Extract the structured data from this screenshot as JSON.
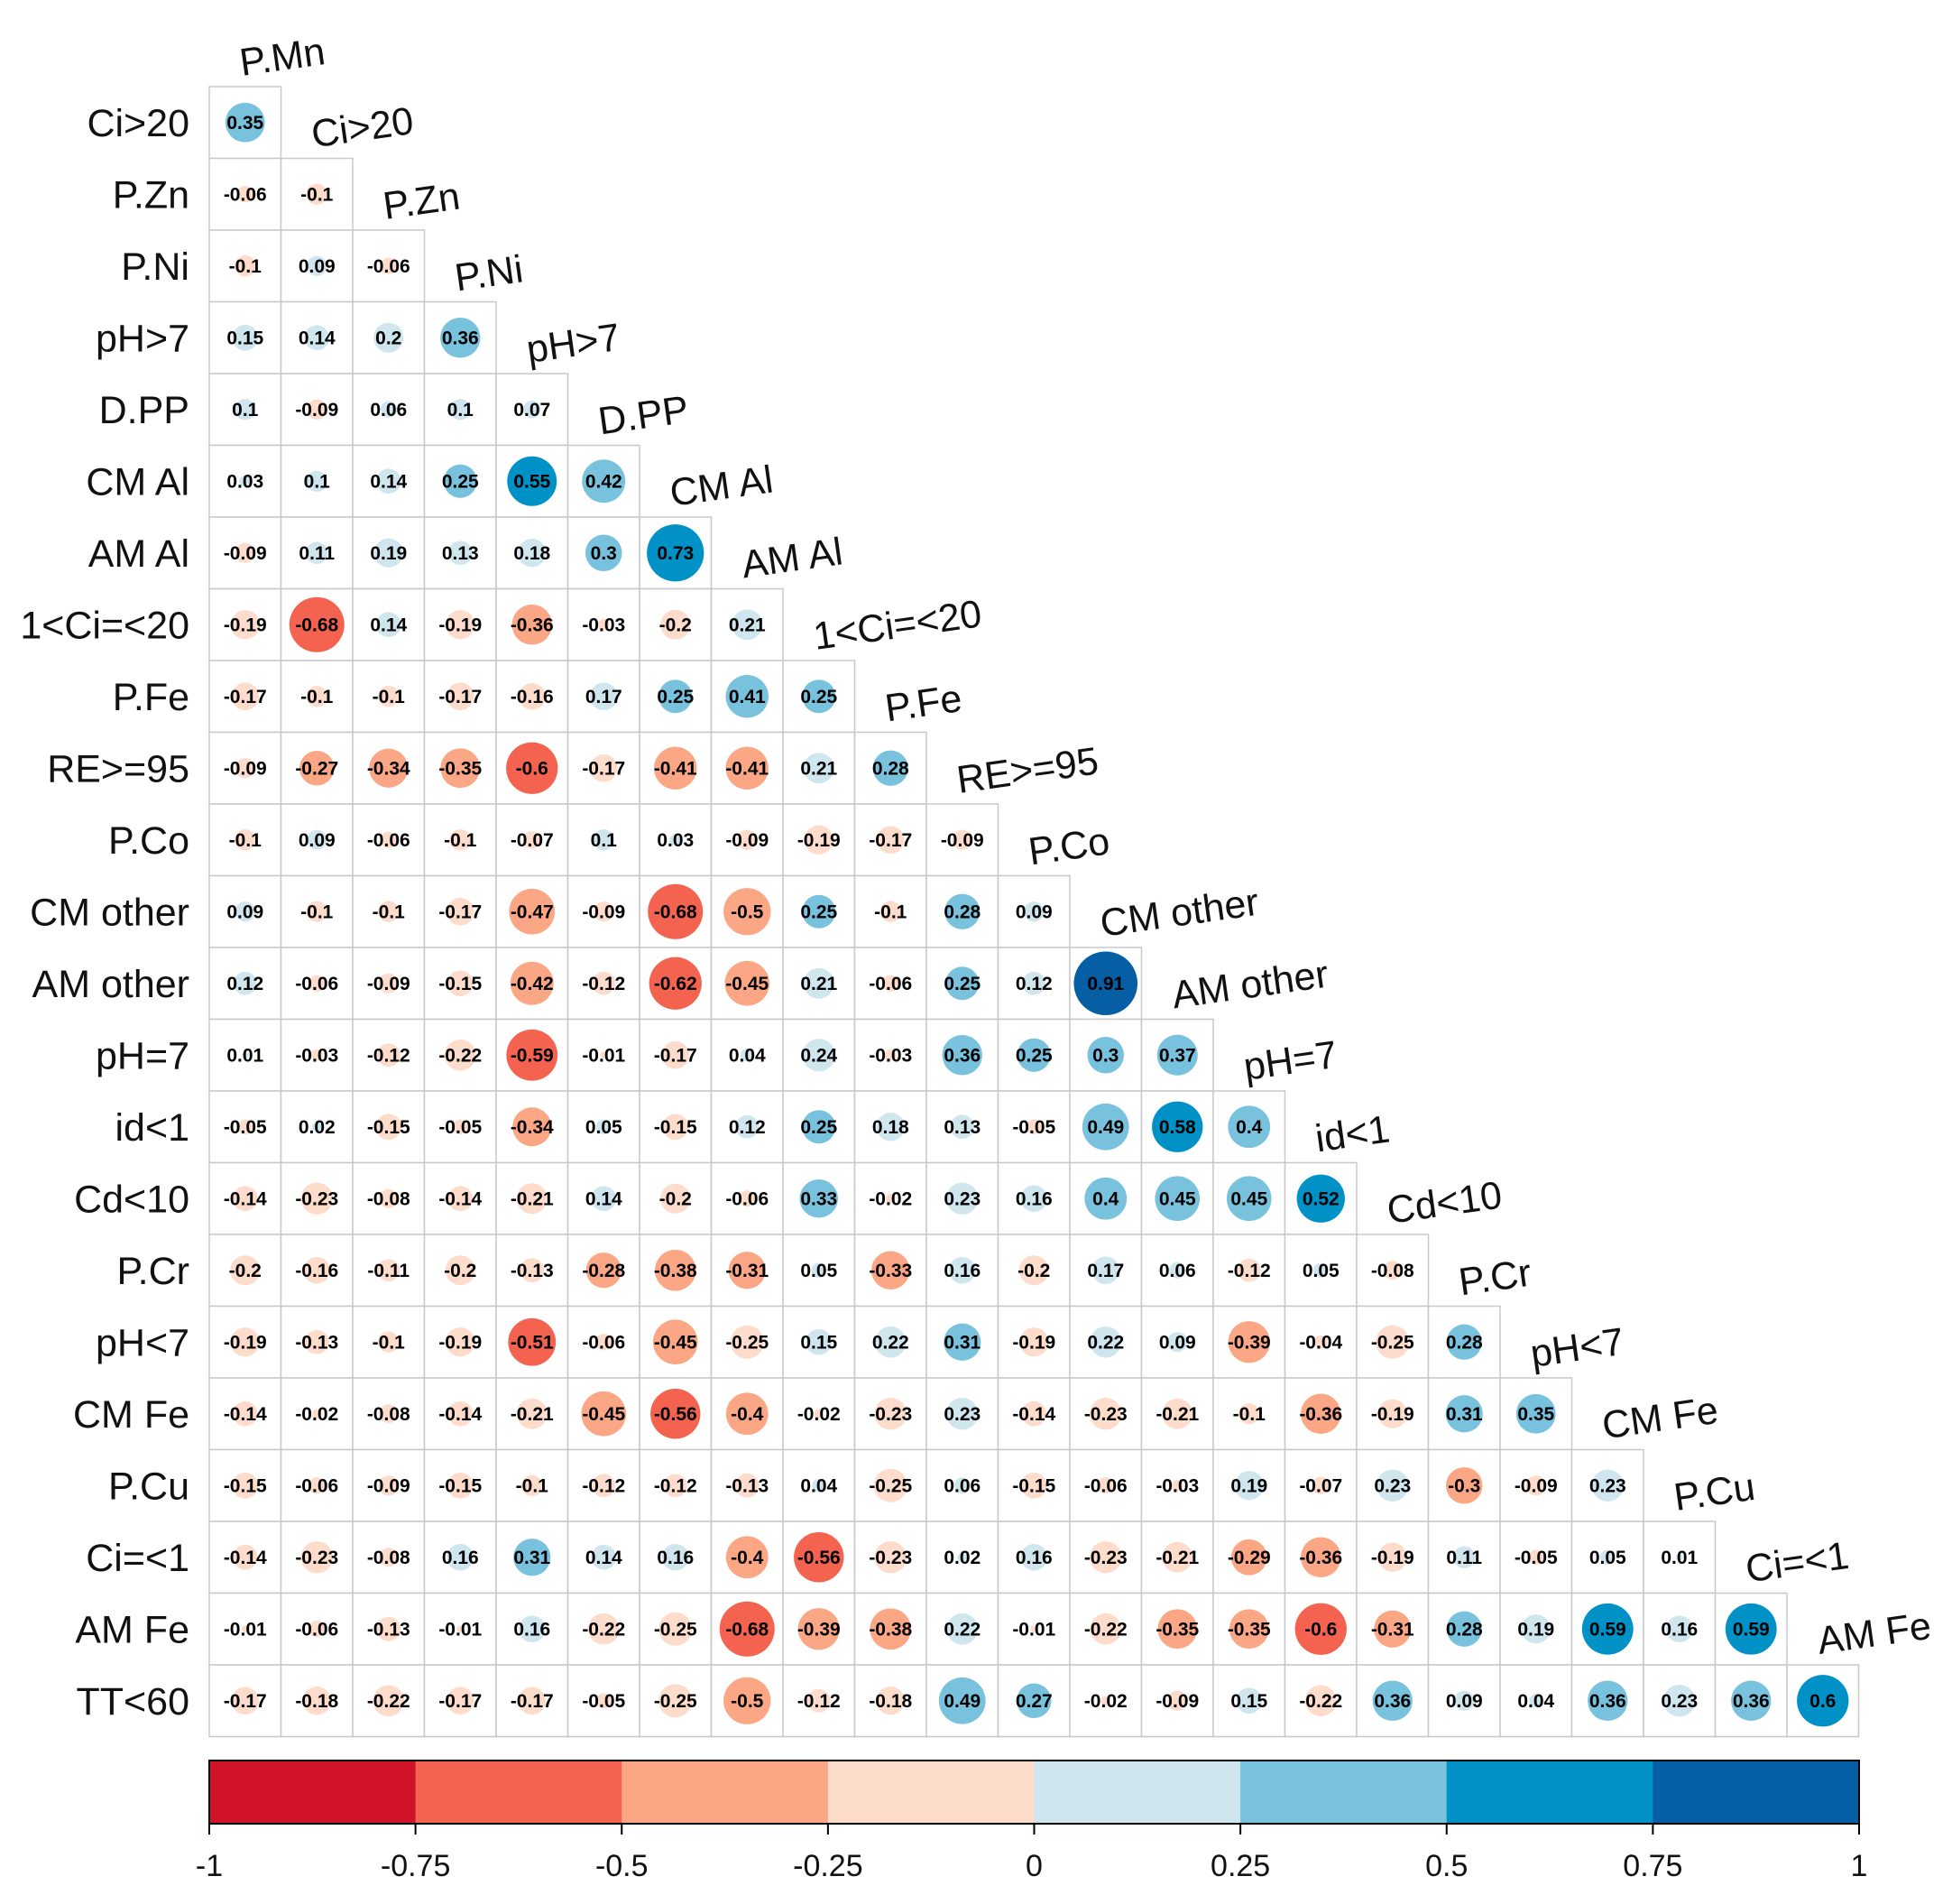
{
  "chart_data": {
    "type": "heatmap",
    "variables": [
      "P.Mn",
      "Ci>20",
      "P.Zn",
      "P.Ni",
      "pH>7",
      "D.PP",
      "CM Al",
      "AM Al",
      "1<Ci=<20",
      "P.Fe",
      "RE>=95",
      "P.Co",
      "CM other",
      "AM other",
      "pH=7",
      "id<1",
      "Cd<10",
      "P.Cr",
      "pH<7",
      "CM Fe",
      "P.Cu",
      "Ci=<1",
      "AM Fe",
      "TT<60"
    ],
    "row_labels": [
      "Ci>20",
      "P.Zn",
      "P.Ni",
      "pH>7",
      "D.PP",
      "CM Al",
      "AM Al",
      "1<Ci=<20",
      "P.Fe",
      "RE>=95",
      "P.Co",
      "CM other",
      "AM other",
      "pH=7",
      "id<1",
      "Cd<10",
      "P.Cr",
      "pH<7",
      "CM Fe",
      "P.Cu",
      "Ci=<1",
      "AM Fe",
      "TT<60"
    ],
    "col_labels": [
      "P.Mn",
      "Ci>20",
      "P.Zn",
      "P.Ni",
      "pH>7",
      "D.PP",
      "CM Al",
      "AM Al",
      "1<Ci=<20",
      "P.Fe",
      "RE>=95",
      "P.Co",
      "CM other",
      "AM other",
      "pH=7",
      "id<1",
      "Cd<10",
      "P.Cr",
      "pH<7",
      "CM Fe",
      "P.Cu",
      "Ci=<1",
      "AM Fe"
    ],
    "matrix": [
      [
        0.35
      ],
      [
        -0.06,
        -0.1
      ],
      [
        -0.1,
        0.09,
        -0.06
      ],
      [
        0.15,
        0.14,
        0.2,
        0.36
      ],
      [
        0.1,
        -0.09,
        0.06,
        0.1,
        0.07
      ],
      [
        0.03,
        0.1,
        0.14,
        0.25,
        0.55,
        0.42
      ],
      [
        -0.09,
        0.11,
        0.19,
        0.13,
        0.18,
        0.3,
        0.73
      ],
      [
        -0.19,
        -0.68,
        0.14,
        -0.19,
        -0.36,
        -0.03,
        -0.2,
        0.21
      ],
      [
        -0.17,
        -0.1,
        -0.1,
        -0.17,
        -0.16,
        0.17,
        0.25,
        0.41,
        0.25
      ],
      [
        -0.09,
        -0.27,
        -0.34,
        -0.35,
        -0.6,
        -0.17,
        -0.41,
        -0.41,
        0.21,
        0.28
      ],
      [
        -0.1,
        0.09,
        -0.06,
        -0.1,
        -0.07,
        0.1,
        0.03,
        -0.09,
        -0.19,
        -0.17,
        -0.09
      ],
      [
        0.09,
        -0.1,
        -0.1,
        -0.17,
        -0.47,
        -0.09,
        -0.68,
        -0.5,
        0.25,
        -0.1,
        0.28,
        0.09
      ],
      [
        0.12,
        -0.06,
        -0.09,
        -0.15,
        -0.42,
        -0.12,
        -0.62,
        -0.45,
        0.21,
        -0.06,
        0.25,
        0.12,
        0.91
      ],
      [
        0.01,
        -0.03,
        -0.12,
        -0.22,
        -0.59,
        -0.01,
        -0.17,
        0.04,
        0.24,
        -0.03,
        0.36,
        0.25,
        0.3,
        0.37
      ],
      [
        -0.05,
        0.02,
        -0.15,
        -0.05,
        -0.34,
        0.05,
        -0.15,
        0.12,
        0.25,
        0.18,
        0.13,
        -0.05,
        0.49,
        0.58,
        0.4
      ],
      [
        -0.14,
        -0.23,
        -0.08,
        -0.14,
        -0.21,
        0.14,
        -0.2,
        -0.06,
        0.33,
        -0.02,
        0.23,
        0.16,
        0.4,
        0.45,
        0.45,
        0.52
      ],
      [
        -0.2,
        -0.16,
        -0.11,
        -0.2,
        -0.13,
        -0.28,
        -0.38,
        -0.31,
        0.05,
        -0.33,
        0.16,
        -0.2,
        0.17,
        0.06,
        -0.12,
        0.05,
        -0.08
      ],
      [
        -0.19,
        -0.13,
        -0.1,
        -0.19,
        -0.51,
        -0.06,
        -0.45,
        -0.25,
        0.15,
        0.22,
        0.31,
        -0.19,
        0.22,
        0.09,
        -0.39,
        -0.04,
        -0.25,
        0.28
      ],
      [
        -0.14,
        -0.02,
        -0.08,
        -0.14,
        -0.21,
        -0.45,
        -0.56,
        -0.4,
        -0.02,
        -0.23,
        0.23,
        -0.14,
        -0.23,
        -0.21,
        -0.1,
        -0.36,
        -0.19,
        0.31,
        0.35
      ],
      [
        -0.15,
        -0.06,
        -0.09,
        -0.15,
        -0.1,
        -0.12,
        -0.12,
        -0.13,
        0.04,
        -0.25,
        0.06,
        -0.15,
        -0.06,
        -0.03,
        0.19,
        -0.07,
        0.23,
        -0.3,
        -0.09,
        0.23
      ],
      [
        -0.14,
        -0.23,
        -0.08,
        0.16,
        0.31,
        0.14,
        0.16,
        -0.4,
        -0.56,
        -0.23,
        0.02,
        0.16,
        -0.23,
        -0.21,
        -0.29,
        -0.36,
        -0.19,
        0.11,
        -0.05,
        0.05,
        0.01
      ],
      [
        -0.01,
        -0.06,
        -0.13,
        -0.01,
        0.16,
        -0.22,
        -0.25,
        -0.68,
        -0.39,
        -0.38,
        0.22,
        -0.01,
        -0.22,
        -0.35,
        -0.35,
        -0.6,
        -0.31,
        0.28,
        0.19,
        0.59,
        0.16,
        0.59
      ],
      [
        -0.17,
        -0.18,
        -0.22,
        -0.17,
        -0.17,
        -0.05,
        -0.25,
        -0.5,
        -0.12,
        -0.18,
        0.49,
        0.27,
        -0.02,
        -0.09,
        0.15,
        -0.22,
        0.36,
        0.09,
        0.04,
        0.36,
        0.23,
        0.36,
        0.6
      ]
    ],
    "colorbar": {
      "ticks": [
        "-1",
        "-0.75",
        "-0.5",
        "-0.25",
        "0",
        "0.25",
        "0.5",
        "0.75",
        "1"
      ],
      "range": [
        -1,
        1
      ],
      "bins": 8,
      "colors": [
        "#d01327",
        "#f3634f",
        "#fba785",
        "#fddccc",
        "#d0e6ef",
        "#78c2dd",
        "#0092c6",
        "#065ea4"
      ]
    },
    "legend_position": "bottom"
  }
}
